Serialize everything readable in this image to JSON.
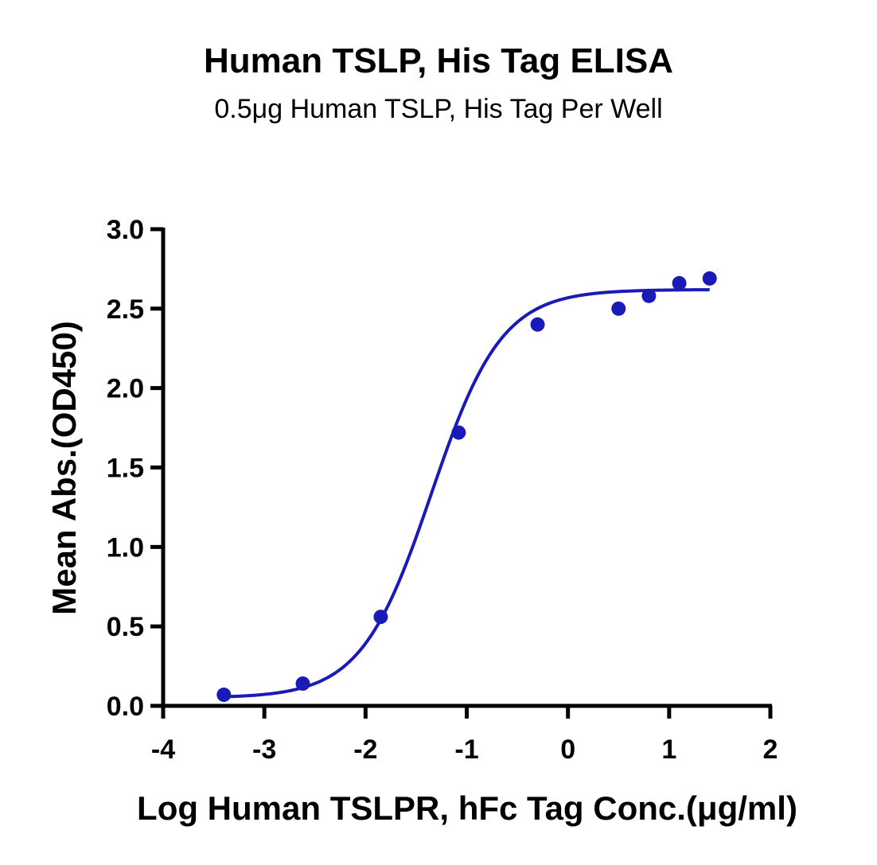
{
  "chart_data": {
    "type": "scatter",
    "title": "Human TSLP, His Tag ELISA",
    "subtitle": "0.5μg Human TSLP, His Tag Per Well",
    "xlabel": "Log Human TSLPR, hFc Tag Conc.(μg/ml)",
    "ylabel": "Mean Abs.(OD450)",
    "xlim": [
      -4,
      2
    ],
    "ylim": [
      0,
      3
    ],
    "x_ticks": [
      -4,
      -3,
      -2,
      -1,
      0,
      1,
      2
    ],
    "x_tick_labels": [
      "-4",
      "-3",
      "-2",
      "-1",
      "0",
      "1",
      "2"
    ],
    "y_ticks": [
      0,
      0.5,
      1,
      1.5,
      2,
      2.5,
      3
    ],
    "y_tick_labels": [
      "0.0",
      "0.5",
      "1.0",
      "1.5",
      "2.0",
      "2.5",
      "3.0"
    ],
    "grid": false,
    "series": [
      {
        "x": [
          -3.4,
          -2.62,
          -1.85,
          -1.08,
          -0.3,
          0.5,
          0.8,
          1.1,
          1.4
        ],
        "y": [
          0.07,
          0.14,
          0.56,
          1.72,
          2.4,
          2.5,
          2.58,
          2.66,
          2.69
        ]
      }
    ],
    "fit_curve": {
      "model": "4PL",
      "bottom": 0.05,
      "top": 2.62,
      "logEC50": -1.35,
      "hill": 1.25,
      "x_range": [
        -3.4,
        1.4
      ]
    },
    "color": "#1a1ab8"
  }
}
